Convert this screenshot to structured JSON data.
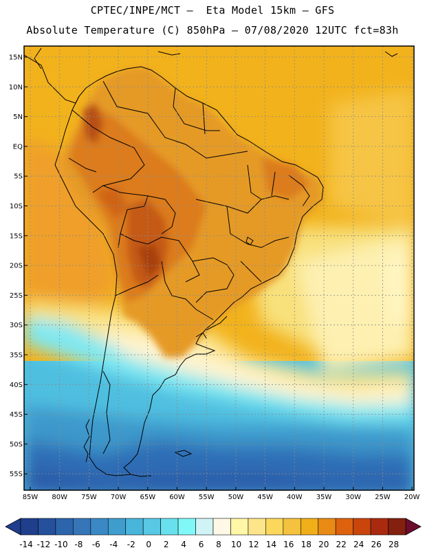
{
  "title": {
    "line1": "CPTEC/INPE/MCT –  Eta Model 15km – GFS",
    "line2": "Absolute Temperature (C) 850hPa – 07/08/2020 12UTC fct=83h"
  },
  "lat_labels": [
    "15N",
    "10N",
    "5N",
    "EQ",
    "5S",
    "10S",
    "15S",
    "20S",
    "25S",
    "30S",
    "35S",
    "40S",
    "45S",
    "50S",
    "55S"
  ],
  "lon_labels": [
    "85W",
    "80W",
    "75W",
    "70W",
    "65W",
    "60W",
    "55W",
    "50W",
    "45W",
    "40W",
    "35W",
    "30W",
    "25W",
    "20W"
  ],
  "colorbar": {
    "labels": [
      "-14",
      "-12",
      "-10",
      "-8",
      "-6",
      "-4",
      "-2",
      "0",
      "2",
      "4",
      "6",
      "8",
      "10",
      "12",
      "14",
      "16",
      "18",
      "20",
      "22",
      "24",
      "26",
      "28"
    ],
    "colors": [
      "#1f3f8c",
      "#25519c",
      "#2d65ac",
      "#3676b8",
      "#3a89c4",
      "#3f9dcd",
      "#48b5da",
      "#58c8e4",
      "#68e0ee",
      "#80f8f8",
      "#d0f4f6",
      "#fff8e6",
      "#fff6a6",
      "#fde68a",
      "#fbd75c",
      "#f4c23e",
      "#f0ae19",
      "#e88a14",
      "#de620e",
      "#c9450c",
      "#aa2a10",
      "#842010",
      "#6b0d2e"
    ]
  },
  "colors": {
    "ocean_north": "#f2b21c",
    "continent": "#e59a28",
    "continent_hot": "#dc7b1a",
    "andes_hot": "#c55a15",
    "yellow_band": "#f8e07a",
    "pale": "#fff4d0",
    "cyan": "#7fe8f2",
    "mid_blue": "#4fbfe0",
    "south_blue": "#3e98cb",
    "deep_blue": "#2f6db5",
    "grid": "#8a8a8a",
    "coast": "#000000"
  }
}
